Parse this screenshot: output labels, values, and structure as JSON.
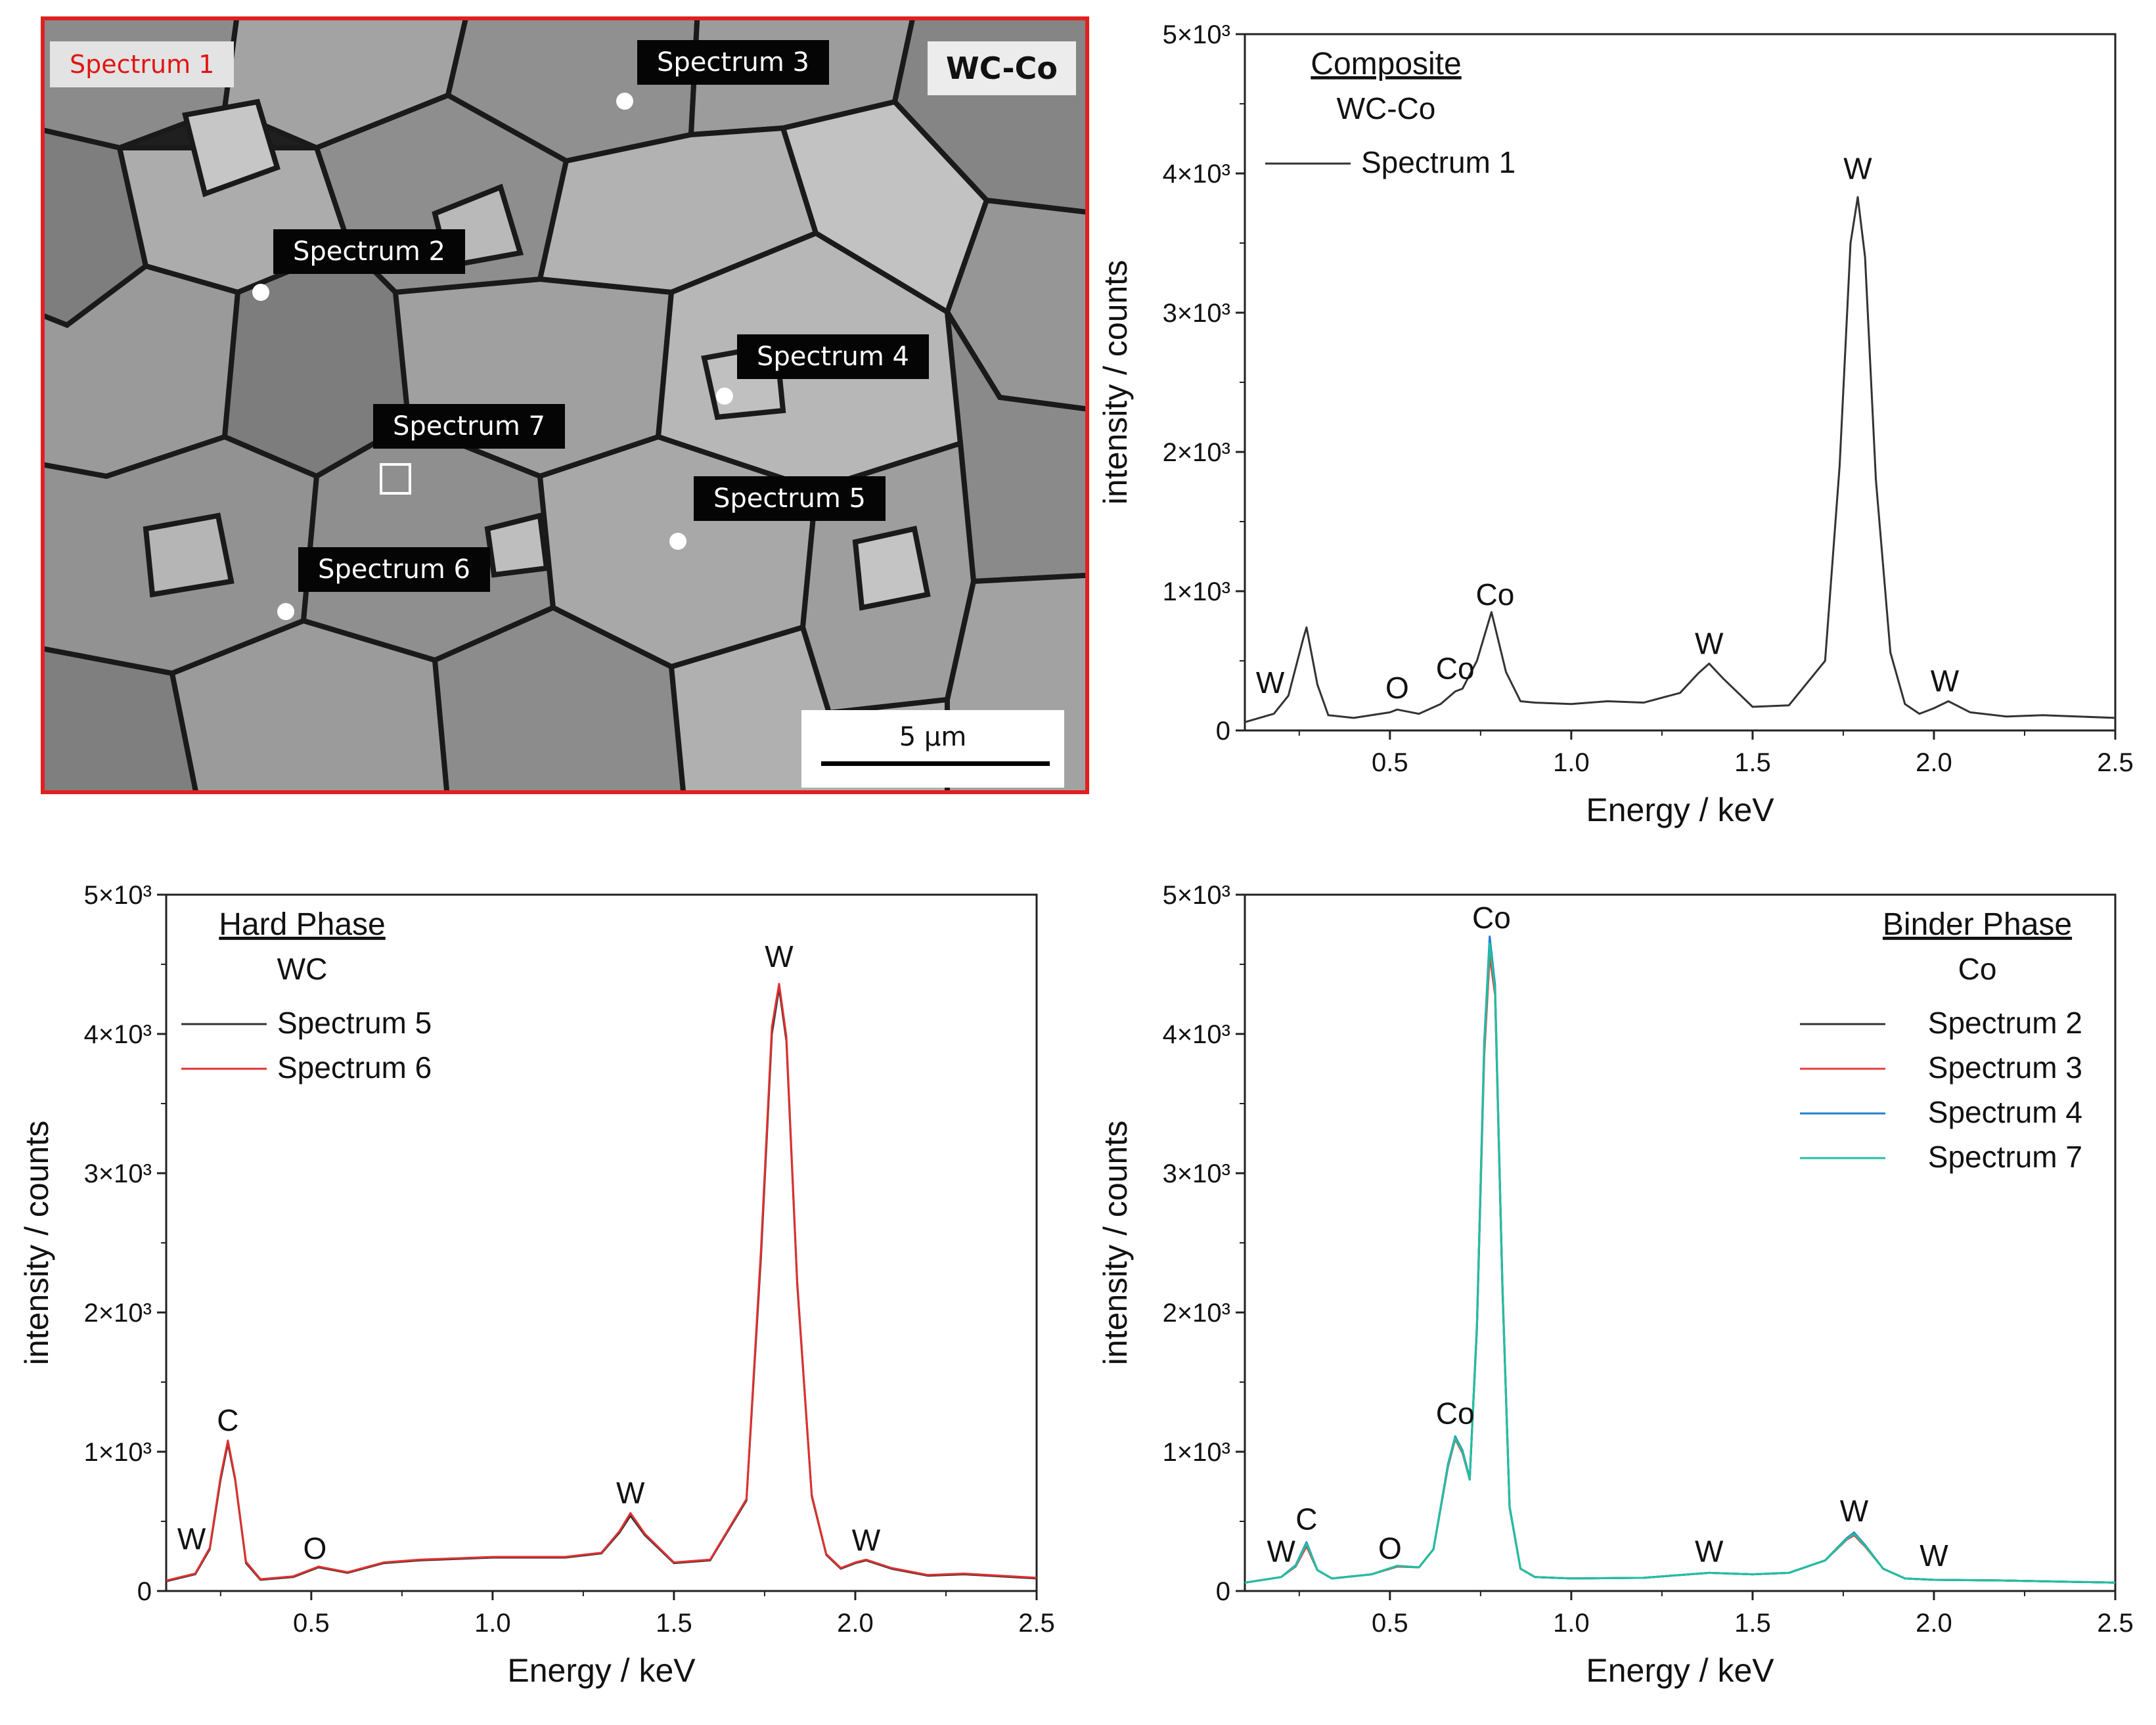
{
  "sem": {
    "region_label": "Spectrum 1",
    "sample_label": "WC-Co",
    "scale_label": "5 µm",
    "frame_color": "#e02020",
    "points": [
      {
        "label": "Spectrum 3",
        "kind": "point"
      },
      {
        "label": "Spectrum 2",
        "kind": "point"
      },
      {
        "label": "Spectrum 4",
        "kind": "point"
      },
      {
        "label": "Spectrum 7",
        "kind": "area"
      },
      {
        "label": "Spectrum 5",
        "kind": "point"
      },
      {
        "label": "Spectrum 6",
        "kind": "point"
      }
    ]
  },
  "chart_data": [
    {
      "type": "line",
      "title": "Composite",
      "subtitle": "WC-Co",
      "xlabel": "Energy / keV",
      "ylabel": "intensity / counts",
      "xlim": [
        0.1,
        2.5
      ],
      "ylim": [
        0,
        5000
      ],
      "xticks": [
        0.5,
        1.0,
        1.5,
        2.0,
        2.5
      ],
      "xtick_labels": [
        "0.5",
        "1.0",
        "1.5",
        "2.0",
        "2.5"
      ],
      "yticks": [
        0,
        1000,
        2000,
        3000,
        4000,
        5000
      ],
      "ytick_labels": [
        "0",
        "1×10³",
        "2×10³",
        "3×10³",
        "4×10³",
        "5×10³"
      ],
      "legend": "top-left",
      "series": [
        {
          "name": "Spectrum 1",
          "color": "#333333",
          "x": [
            0.1,
            0.18,
            0.22,
            0.26,
            0.27,
            0.3,
            0.33,
            0.4,
            0.5,
            0.52,
            0.58,
            0.64,
            0.68,
            0.7,
            0.74,
            0.78,
            0.82,
            0.86,
            0.9,
            1.0,
            1.1,
            1.2,
            1.3,
            1.35,
            1.38,
            1.42,
            1.5,
            1.6,
            1.7,
            1.74,
            1.77,
            1.79,
            1.81,
            1.84,
            1.88,
            1.92,
            1.96,
            2.0,
            2.04,
            2.1,
            2.2,
            2.3,
            2.5
          ],
          "values": [
            60,
            120,
            250,
            650,
            740,
            330,
            110,
            90,
            130,
            150,
            120,
            190,
            280,
            300,
            500,
            850,
            420,
            210,
            200,
            190,
            210,
            200,
            270,
            410,
            480,
            370,
            170,
            180,
            500,
            1900,
            3500,
            3830,
            3400,
            1800,
            560,
            190,
            120,
            160,
            210,
            130,
            100,
            110,
            90
          ]
        }
      ],
      "annotations": [
        {
          "text": "W",
          "x": 0.17,
          "y": 270
        },
        {
          "text": "O",
          "x": 0.52,
          "y": 230
        },
        {
          "text": "Co",
          "x": 0.68,
          "y": 370
        },
        {
          "text": "Co",
          "x": 0.79,
          "y": 900
        },
        {
          "text": "W",
          "x": 1.38,
          "y": 550
        },
        {
          "text": "W",
          "x": 1.79,
          "y": 3960
        },
        {
          "text": "W",
          "x": 2.03,
          "y": 280
        }
      ]
    },
    {
      "type": "line",
      "title": "Hard Phase",
      "subtitle": "WC",
      "xlabel": "Energy / keV",
      "ylabel": "intensity / counts",
      "xlim": [
        0.1,
        2.5
      ],
      "ylim": [
        0,
        5000
      ],
      "xticks": [
        0.5,
        1.0,
        1.5,
        2.0,
        2.5
      ],
      "xtick_labels": [
        "0.5",
        "1.0",
        "1.5",
        "2.0",
        "2.5"
      ],
      "yticks": [
        0,
        1000,
        2000,
        3000,
        4000,
        5000
      ],
      "ytick_labels": [
        "0",
        "1×10³",
        "2×10³",
        "3×10³",
        "4×10³",
        "5×10³"
      ],
      "legend": "top-left",
      "series": [
        {
          "name": "Spectrum 5",
          "color": "#333333",
          "x": [
            0.1,
            0.18,
            0.22,
            0.25,
            0.27,
            0.29,
            0.32,
            0.36,
            0.45,
            0.52,
            0.6,
            0.7,
            0.8,
            0.9,
            1.0,
            1.1,
            1.2,
            1.3,
            1.35,
            1.38,
            1.42,
            1.5,
            1.6,
            1.7,
            1.74,
            1.77,
            1.79,
            1.81,
            1.84,
            1.88,
            1.92,
            1.96,
            2.0,
            2.03,
            2.1,
            2.2,
            2.3,
            2.5
          ],
          "values": [
            70,
            120,
            300,
            800,
            1060,
            800,
            200,
            80,
            100,
            170,
            130,
            200,
            220,
            230,
            240,
            240,
            240,
            270,
            420,
            540,
            400,
            200,
            220,
            650,
            2400,
            4000,
            4330,
            3950,
            2200,
            680,
            260,
            160,
            200,
            220,
            160,
            110,
            120,
            90
          ]
        },
        {
          "name": "Spectrum 6",
          "color": "#e03030",
          "x": [
            0.1,
            0.18,
            0.22,
            0.25,
            0.27,
            0.29,
            0.32,
            0.36,
            0.45,
            0.52,
            0.6,
            0.7,
            0.8,
            0.9,
            1.0,
            1.1,
            1.2,
            1.3,
            1.35,
            1.38,
            1.42,
            1.5,
            1.6,
            1.7,
            1.74,
            1.77,
            1.79,
            1.81,
            1.84,
            1.88,
            1.92,
            1.96,
            2.0,
            2.03,
            2.1,
            2.2,
            2.3,
            2.5
          ],
          "values": [
            75,
            125,
            310,
            820,
            1080,
            810,
            210,
            85,
            105,
            175,
            135,
            205,
            225,
            235,
            245,
            245,
            245,
            275,
            430,
            560,
            410,
            205,
            225,
            660,
            2450,
            4050,
            4360,
            3980,
            2220,
            690,
            265,
            165,
            205,
            225,
            165,
            115,
            125,
            95
          ]
        }
      ],
      "annotations": [
        {
          "text": "C",
          "x": 0.27,
          "y": 1150
        },
        {
          "text": "W",
          "x": 0.17,
          "y": 300
        },
        {
          "text": "O",
          "x": 0.51,
          "y": 230
        },
        {
          "text": "W",
          "x": 1.38,
          "y": 630
        },
        {
          "text": "W",
          "x": 1.79,
          "y": 4480
        },
        {
          "text": "W",
          "x": 2.03,
          "y": 290
        }
      ]
    },
    {
      "type": "line",
      "title": "Binder Phase",
      "subtitle": "Co",
      "xlabel": "Energy / keV",
      "ylabel": "intensity / counts",
      "xlim": [
        0.1,
        2.5
      ],
      "ylim": [
        0,
        5000
      ],
      "xticks": [
        0.5,
        1.0,
        1.5,
        2.0,
        2.5
      ],
      "xtick_labels": [
        "0.5",
        "1.0",
        "1.5",
        "2.0",
        "2.5"
      ],
      "yticks": [
        0,
        1000,
        2000,
        3000,
        4000,
        5000
      ],
      "ytick_labels": [
        "0",
        "1×10³",
        "2×10³",
        "3×10³",
        "4×10³",
        "5×10³"
      ],
      "legend": "top-right",
      "series": [
        {
          "name": "Spectrum 2",
          "color": "#333333",
          "x": [
            0.1,
            0.2,
            0.24,
            0.27,
            0.3,
            0.34,
            0.45,
            0.52,
            0.58,
            0.62,
            0.66,
            0.68,
            0.7,
            0.72,
            0.74,
            0.76,
            0.775,
            0.79,
            0.81,
            0.83,
            0.86,
            0.9,
            1.0,
            1.2,
            1.38,
            1.5,
            1.6,
            1.7,
            1.76,
            1.78,
            1.81,
            1.86,
            1.92,
            2.0,
            2.2,
            2.5
          ],
          "values": [
            60,
            100,
            180,
            330,
            150,
            90,
            120,
            180,
            170,
            300,
            900,
            1100,
            1000,
            800,
            1900,
            3900,
            4600,
            4300,
            2200,
            600,
            160,
            100,
            90,
            95,
            130,
            120,
            130,
            220,
            380,
            410,
            330,
            160,
            90,
            80,
            75,
            60
          ]
        },
        {
          "name": "Spectrum 3",
          "color": "#e04040",
          "x": [
            0.1,
            0.2,
            0.24,
            0.27,
            0.3,
            0.34,
            0.45,
            0.52,
            0.58,
            0.62,
            0.66,
            0.68,
            0.7,
            0.72,
            0.74,
            0.76,
            0.775,
            0.79,
            0.81,
            0.83,
            0.86,
            0.9,
            1.0,
            1.2,
            1.38,
            1.5,
            1.6,
            1.7,
            1.76,
            1.78,
            1.81,
            1.86,
            1.92,
            2.0,
            2.2,
            2.5
          ],
          "values": [
            60,
            100,
            175,
            320,
            150,
            90,
            120,
            175,
            170,
            300,
            890,
            1090,
            990,
            800,
            1880,
            3850,
            4560,
            4280,
            2180,
            600,
            160,
            100,
            90,
            95,
            130,
            120,
            130,
            220,
            370,
            400,
            320,
            160,
            90,
            80,
            75,
            60
          ]
        },
        {
          "name": "Spectrum 4",
          "color": "#1f7fd0",
          "x": [
            0.1,
            0.2,
            0.24,
            0.27,
            0.3,
            0.34,
            0.45,
            0.52,
            0.58,
            0.62,
            0.66,
            0.68,
            0.7,
            0.72,
            0.74,
            0.76,
            0.775,
            0.79,
            0.81,
            0.83,
            0.86,
            0.9,
            1.0,
            1.2,
            1.38,
            1.5,
            1.6,
            1.7,
            1.76,
            1.78,
            1.81,
            1.86,
            1.92,
            2.0,
            2.2,
            2.5
          ],
          "values": [
            60,
            100,
            185,
            350,
            150,
            90,
            120,
            180,
            170,
            300,
            910,
            1110,
            1010,
            810,
            1920,
            3950,
            4700,
            4350,
            2220,
            610,
            160,
            100,
            90,
            95,
            130,
            120,
            130,
            220,
            380,
            420,
            330,
            160,
            90,
            80,
            75,
            60
          ]
        },
        {
          "name": "Spectrum 7",
          "color": "#20c0a0",
          "x": [
            0.1,
            0.2,
            0.24,
            0.27,
            0.3,
            0.34,
            0.45,
            0.52,
            0.58,
            0.62,
            0.66,
            0.68,
            0.7,
            0.72,
            0.74,
            0.76,
            0.775,
            0.79,
            0.81,
            0.83,
            0.86,
            0.9,
            1.0,
            1.2,
            1.38,
            1.5,
            1.6,
            1.7,
            1.76,
            1.78,
            1.81,
            1.86,
            1.92,
            2.0,
            2.2,
            2.5
          ],
          "values": [
            60,
            100,
            180,
            340,
            150,
            90,
            120,
            180,
            170,
            300,
            900,
            1100,
            1000,
            800,
            1900,
            3920,
            4650,
            4320,
            2200,
            600,
            160,
            100,
            90,
            95,
            130,
            120,
            130,
            220,
            375,
            410,
            325,
            160,
            90,
            80,
            75,
            60
          ]
        }
      ],
      "annotations": [
        {
          "text": "W",
          "x": 0.2,
          "y": 210
        },
        {
          "text": "C",
          "x": 0.27,
          "y": 440
        },
        {
          "text": "O",
          "x": 0.5,
          "y": 230
        },
        {
          "text": "Co",
          "x": 0.68,
          "y": 1200
        },
        {
          "text": "Co",
          "x": 0.78,
          "y": 4760
        },
        {
          "text": "W",
          "x": 1.38,
          "y": 210
        },
        {
          "text": "W",
          "x": 1.78,
          "y": 500
        },
        {
          "text": "W",
          "x": 2.0,
          "y": 180
        }
      ]
    }
  ]
}
